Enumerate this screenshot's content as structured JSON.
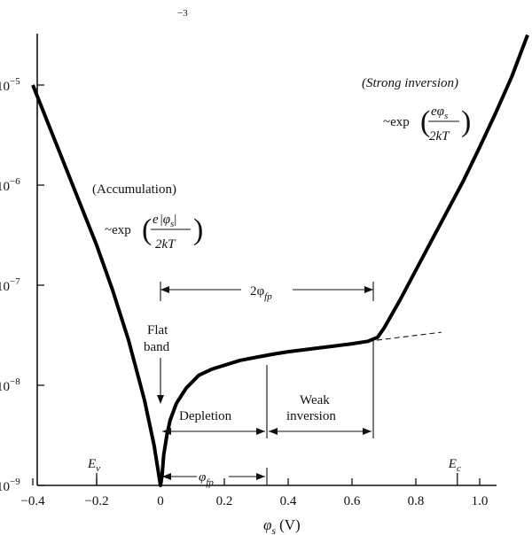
{
  "chart_data": {
    "type": "line",
    "xlabel_symbol": "φ",
    "xlabel_sub": "s",
    "xlabel_unit": "(V)",
    "xlim": [
      -0.4,
      1.15
    ],
    "ylim_log10": [
      -9,
      -4.4
    ],
    "y_scale": "log",
    "x_ticks": [
      -0.4,
      -0.2,
      0,
      0.2,
      0.4,
      0.6,
      0.8,
      1.0
    ],
    "x_tick_labels": [
      "−0.4",
      "−0.2",
      "0",
      "0.2",
      "0.4",
      "0.6",
      "0.8",
      "1.0"
    ],
    "y_ticks_exp": [
      -9,
      -8,
      -7,
      -6,
      -5
    ],
    "y_tick_labels": [
      {
        "base": "10",
        "exp": "−9"
      },
      {
        "base": "10",
        "exp": "−8"
      },
      {
        "base": "10",
        "exp": "−7"
      },
      {
        "base": "10",
        "exp": "−6"
      },
      {
        "base": "10",
        "exp": "−5"
      }
    ],
    "top_fragment": "−3",
    "series": [
      {
        "x": [
          -0.4,
          -0.35,
          -0.3,
          -0.25,
          -0.2,
          -0.15,
          -0.1,
          -0.05,
          -0.02,
          0.0,
          0.005,
          0.01,
          0.02,
          0.03,
          0.05,
          0.08,
          0.12,
          0.16,
          0.2,
          0.25,
          0.3,
          0.35,
          0.4,
          0.45,
          0.5,
          0.55,
          0.6,
          0.65,
          0.68,
          0.7,
          0.75,
          0.8,
          0.85,
          0.9,
          0.95,
          1.0,
          1.05,
          1.1,
          1.15
        ],
        "y_log10": [
          -5.0,
          -5.4,
          -5.8,
          -6.2,
          -6.6,
          -7.05,
          -7.55,
          -8.15,
          -8.6,
          -9.0,
          -8.9,
          -8.7,
          -8.5,
          -8.35,
          -8.18,
          -8.03,
          -7.9,
          -7.84,
          -7.8,
          -7.75,
          -7.72,
          -7.69,
          -7.665,
          -7.645,
          -7.625,
          -7.605,
          -7.585,
          -7.56,
          -7.52,
          -7.43,
          -7.15,
          -6.85,
          -6.55,
          -6.25,
          -5.95,
          -5.62,
          -5.28,
          -4.92,
          -4.5
        ]
      }
    ],
    "extrapolation_dashed": {
      "x": [
        0.65,
        0.88
      ],
      "y_log10": [
        -7.56,
        -7.47
      ]
    },
    "energy_markers": [
      {
        "x": -0.2,
        "label_main": "E",
        "label_sub": "v"
      },
      {
        "x": 0.93,
        "label_main": "E",
        "label_sub": "c"
      }
    ],
    "annotations": {
      "strong_inversion": "(Strong inversion)",
      "accumulation": "(Accumulation)",
      "approx_exp": "~exp",
      "e": "e",
      "phi": "φ",
      "sub_s": "s",
      "denominator": "2kT",
      "flat_band_line1": "Flat",
      "flat_band_line2": "band",
      "two_phi_fp": "2φ",
      "sub_fp": "fp",
      "phi_fp": "φ",
      "depletion": "Depletion",
      "weak_inversion_line1": "Weak",
      "weak_inversion_line2": "inversion"
    }
  }
}
